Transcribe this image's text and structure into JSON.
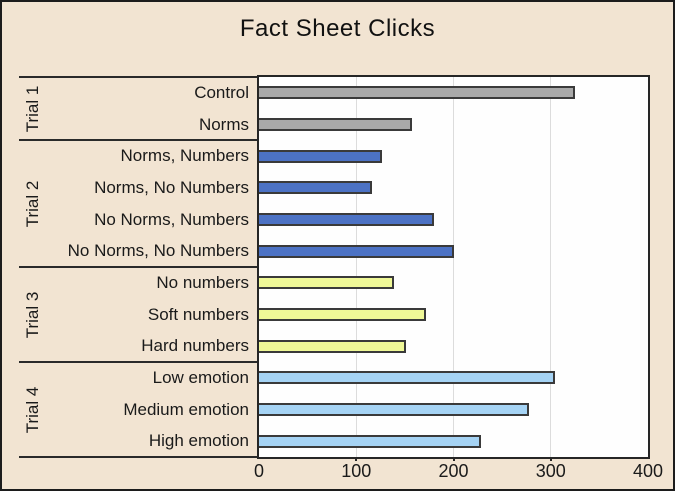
{
  "title": "Fact Sheet Clicks",
  "colors": {
    "background": "#F2E4D2",
    "plot_background": "#FEFEFE",
    "bar_border": "#3A3A3A",
    "gridline": "#DCDCDC",
    "text": "#1A1A1A",
    "trial1_bar": "#A9A9A9",
    "trial2_bar": "#4C72C4",
    "trial3_bar": "#EFF897",
    "trial4_bar": "#A5D3F4"
  },
  "chart_data": {
    "type": "bar",
    "orientation": "horizontal",
    "title": "Fact Sheet Clicks",
    "xlabel": "",
    "ylabel": "",
    "xlim": [
      0,
      400
    ],
    "x_ticks": [
      "0",
      "100",
      "200",
      "300",
      "400"
    ],
    "x_tick_values": [
      0,
      100,
      200,
      300,
      400
    ],
    "grid": true,
    "legend": "none",
    "groups": [
      {
        "label": "Trial 1",
        "color": "#A9A9A9",
        "bars": [
          {
            "label": "Control",
            "value": 325
          },
          {
            "label": "Norms",
            "value": 157
          }
        ]
      },
      {
        "label": "Trial 2",
        "color": "#4C72C4",
        "bars": [
          {
            "label": "Norms, Numbers",
            "value": 126
          },
          {
            "label": "Norms, No Numbers",
            "value": 116
          },
          {
            "label": "No Norms, Numbers",
            "value": 180
          },
          {
            "label": "No Norms, No Numbers",
            "value": 200
          }
        ]
      },
      {
        "label": "Trial 3",
        "color": "#EFF897",
        "bars": [
          {
            "label": "No numbers",
            "value": 139
          },
          {
            "label": "Soft numbers",
            "value": 172
          },
          {
            "label": "Hard numbers",
            "value": 151
          }
        ]
      },
      {
        "label": "Trial 4",
        "color": "#A5D3F4",
        "bars": [
          {
            "label": "Low emotion",
            "value": 304
          },
          {
            "label": "Medium emotion",
            "value": 278
          },
          {
            "label": "High emotion",
            "value": 228
          }
        ]
      }
    ]
  }
}
